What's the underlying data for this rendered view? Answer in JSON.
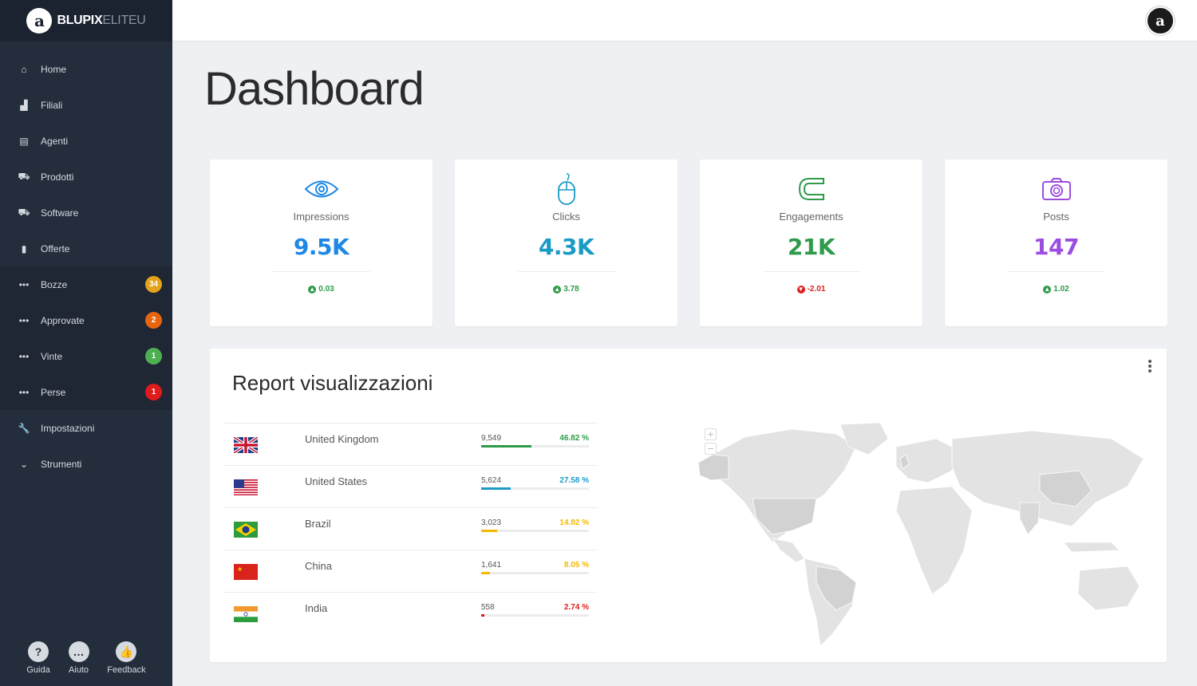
{
  "brand": {
    "logo_letter": "a",
    "name_bold": "BLUPIX",
    "name_light": "ELITEU"
  },
  "top_avatar_letter": "a",
  "page_title": "Dashboard",
  "nav": [
    {
      "label": "Home",
      "icon": "home-icon",
      "glyph": "⌂"
    },
    {
      "label": "Filiali",
      "icon": "factory-icon",
      "glyph": "▟"
    },
    {
      "label": "Agenti",
      "icon": "id-card-icon",
      "glyph": "▤"
    },
    {
      "label": "Prodotti",
      "icon": "cart-icon",
      "glyph": "⛟"
    },
    {
      "label": "Software",
      "icon": "cart-icon",
      "glyph": "⛟"
    },
    {
      "label": "Offerte",
      "icon": "file-icon",
      "glyph": "▮"
    },
    {
      "label": "Bozze",
      "icon": "ellipsis-icon",
      "glyph": "•••",
      "badge": "34",
      "badge_color": "#e3a21a"
    },
    {
      "label": "Approvate",
      "icon": "ellipsis-icon",
      "glyph": "•••",
      "badge": "2",
      "badge_color": "#e8650f"
    },
    {
      "label": "Vinte",
      "icon": "ellipsis-icon",
      "glyph": "•••",
      "badge": "1",
      "badge_color": "#4caf50"
    },
    {
      "label": "Perse",
      "icon": "ellipsis-icon",
      "glyph": "•••",
      "badge": "1",
      "badge_color": "#e01b1b"
    },
    {
      "label": "Impostazioni",
      "icon": "wrench-icon",
      "glyph": "🔧"
    },
    {
      "label": "Strumenti",
      "icon": "chevron-down-icon",
      "glyph": "⌄"
    }
  ],
  "bottom_tools": [
    {
      "label": "Guida",
      "icon": "question-icon",
      "glyph": "?"
    },
    {
      "label": "Aiuto",
      "icon": "chat-icon",
      "glyph": "…"
    },
    {
      "label": "Feedback",
      "icon": "thumbs-up-icon",
      "glyph": "👍"
    }
  ],
  "stats": [
    {
      "label": "Impressions",
      "value": "9.5K",
      "delta": "0.03",
      "trend": "up",
      "icon": "eye-icon",
      "color": "#1e88e5"
    },
    {
      "label": "Clicks",
      "value": "4.3K",
      "delta": "3.78",
      "trend": "up",
      "icon": "mouse-icon",
      "color": "#1a9bc6"
    },
    {
      "label": "Engagements",
      "value": "21K",
      "delta": "-2.01",
      "trend": "down",
      "icon": "magnet-icon",
      "color": "#2e9b4a"
    },
    {
      "label": "Posts",
      "value": "147",
      "delta": "1.02",
      "trend": "up",
      "icon": "camera-icon",
      "color": "#9b4de0"
    }
  ],
  "colors": {
    "up": "#2e9b4a",
    "down": "#e01b1b"
  },
  "report": {
    "title": "Report visualizzazioni",
    "countries": [
      {
        "name": "United Kingdom",
        "count": "9,549",
        "pct": "46.82 %",
        "share": 0.4682,
        "color": "#2e9b4a",
        "flag": "uk"
      },
      {
        "name": "United States",
        "count": "5,624",
        "pct": "27.58 %",
        "share": 0.2758,
        "color": "#1a9bc6",
        "flag": "us"
      },
      {
        "name": "Brazil",
        "count": "3,023",
        "pct": "14.82 %",
        "share": 0.1482,
        "color": "#f5b800",
        "flag": "br"
      },
      {
        "name": "China",
        "count": "1,641",
        "pct": "8.05 %",
        "share": 0.0805,
        "color": "#f5b800",
        "flag": "cn"
      },
      {
        "name": "India",
        "count": "558",
        "pct": "2.74 %",
        "share": 0.0274,
        "color": "#e01b1b",
        "flag": "in"
      }
    ],
    "map": {
      "zoom_in": "+",
      "zoom_out": "−"
    }
  }
}
